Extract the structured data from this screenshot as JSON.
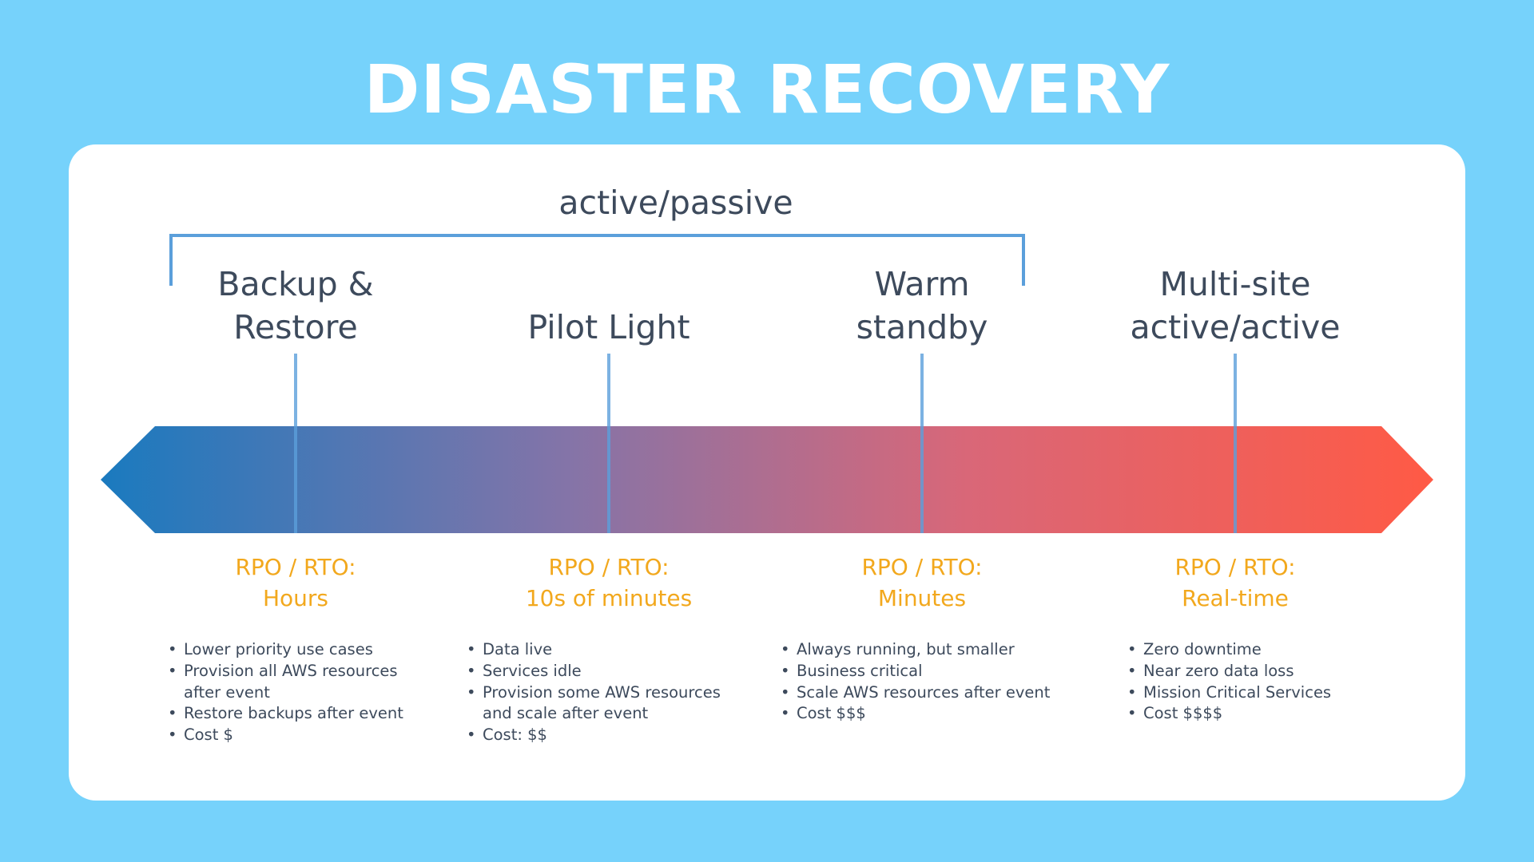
{
  "title": "DISASTER RECOVERY",
  "group_label": "active/passive",
  "colors": {
    "background": "#76d2fb",
    "card": "#ffffff",
    "arrow_start": "#1a7abf",
    "arrow_end": "#ff5a45",
    "bracket": "#5b9fdb",
    "rpo_text": "#f2a81d",
    "body_text": "#3d4a5c"
  },
  "strategies": [
    {
      "name_line1": "Backup &",
      "name_line2": "Restore",
      "rpo_label": "RPO / RTO:",
      "rpo_value": "Hours",
      "bullets": [
        "Lower priority use cases",
        "Provision all AWS resources",
        "after event",
        "Restore backups after event",
        "Cost $"
      ]
    },
    {
      "name_line1": "",
      "name_line2": "Pilot Light",
      "rpo_label": "RPO / RTO:",
      "rpo_value": "10s of minutes",
      "bullets": [
        "Data live",
        "Services idle",
        "Provision some AWS resources",
        "and scale after event",
        "Cost: $$"
      ]
    },
    {
      "name_line1": "Warm",
      "name_line2": "standby",
      "rpo_label": "RPO / RTO:",
      "rpo_value": "Minutes",
      "bullets": [
        "Always running, but smaller",
        "Business critical",
        "Scale AWS resources after event",
        "Cost $$$"
      ]
    },
    {
      "name_line1": "Multi-site",
      "name_line2": "active/active",
      "rpo_label": "RPO / RTO:",
      "rpo_value": "Real-time",
      "bullets": [
        "Zero downtime",
        "Near zero data loss",
        "Mission Critical Services",
        "Cost $$$$"
      ]
    }
  ]
}
